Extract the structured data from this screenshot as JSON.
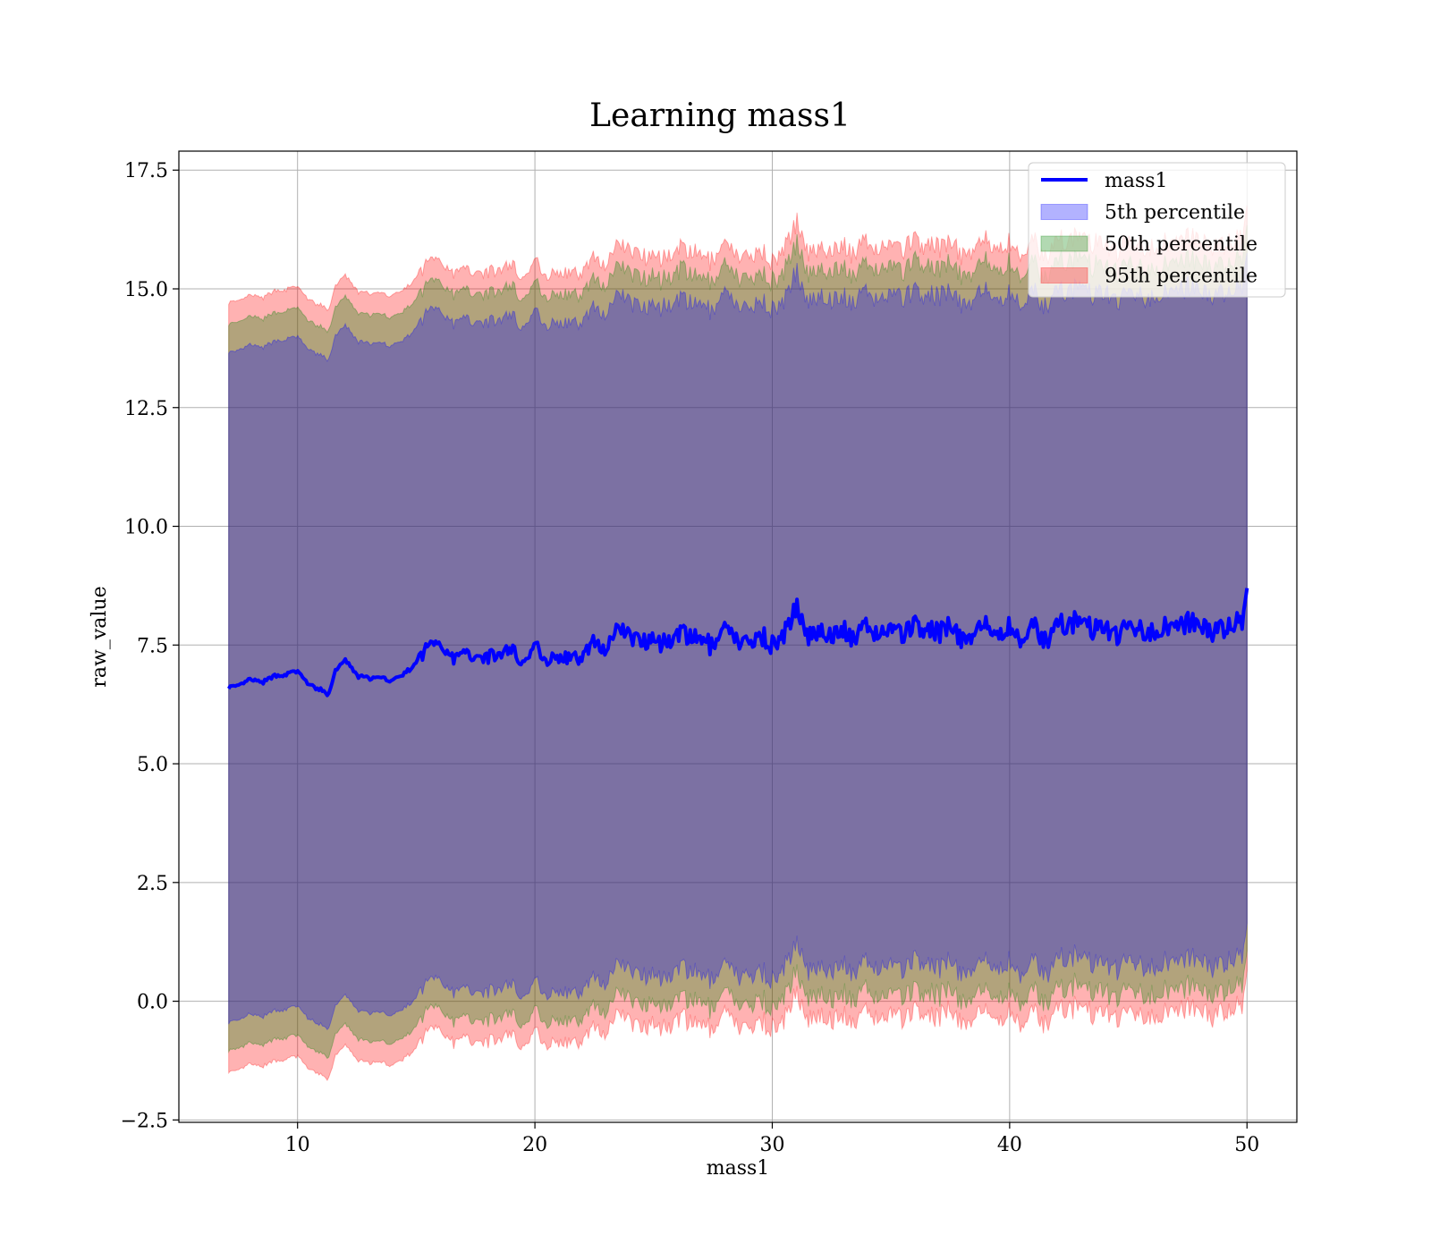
{
  "chart_data": {
    "type": "area",
    "title": "Learning mass1",
    "xlabel": "mass1",
    "ylabel": "raw_value",
    "xlim": [
      5,
      52.1
    ],
    "ylim": [
      -2.55,
      17.9
    ],
    "xticks": [
      10,
      20,
      30,
      40,
      50
    ],
    "xtick_labels": [
      "10",
      "20",
      "30",
      "40",
      "50"
    ],
    "yticks": [
      -2.5,
      0.0,
      2.5,
      5.0,
      7.5,
      10.0,
      12.5,
      15.0,
      17.5
    ],
    "ytick_labels": [
      "−2.5",
      "0.0",
      "2.5",
      "5.0",
      "7.5",
      "10.0",
      "12.5",
      "15.0",
      "17.5"
    ],
    "grid": true,
    "legend_position": "upper right",
    "series": [
      {
        "name": "mass1",
        "kind": "line",
        "color": "#0000ff"
      },
      {
        "name": "5th percentile",
        "kind": "band",
        "color": "#0000ff",
        "half_width": 7.05
      },
      {
        "name": "50th percentile",
        "kind": "band",
        "color": "#008000",
        "half_width": 7.65
      },
      {
        "name": "95th percentile",
        "kind": "band",
        "color": "#ff0000",
        "half_width": 8.1
      }
    ],
    "x": [
      7.1,
      7.5,
      8.0,
      8.5,
      9.0,
      9.5,
      10.0,
      10.5,
      11.0,
      11.3,
      11.6,
      12.0,
      12.5,
      13.0,
      13.5,
      14.0,
      14.5,
      15.0,
      15.5,
      16.0,
      16.5,
      17.0,
      17.5,
      18.0,
      18.5,
      19.0,
      19.5,
      20.0,
      20.5,
      21.0,
      21.5,
      22.0,
      22.5,
      23.0,
      23.5,
      24.0,
      24.5,
      25.0,
      25.5,
      26.0,
      26.5,
      27.0,
      27.5,
      28.0,
      28.5,
      29.0,
      29.5,
      30.0,
      30.5,
      31.0,
      31.5,
      32.0,
      32.5,
      33.0,
      33.5,
      34.0,
      34.5,
      35.0,
      35.5,
      36.0,
      36.5,
      37.0,
      37.5,
      38.0,
      38.5,
      39.0,
      39.5,
      40.0,
      40.5,
      41.0,
      41.5,
      42.0,
      42.5,
      43.0,
      43.5,
      44.0,
      44.5,
      45.0,
      45.5,
      46.0,
      46.5,
      47.0,
      47.5,
      48.0,
      48.5,
      49.0,
      49.5,
      49.8,
      50.0
    ],
    "median": [
      6.62,
      6.62,
      6.78,
      6.7,
      6.85,
      6.88,
      6.95,
      6.65,
      6.55,
      6.45,
      6.95,
      7.2,
      6.85,
      6.8,
      6.8,
      6.75,
      6.9,
      7.1,
      7.5,
      7.6,
      7.2,
      7.3,
      7.3,
      7.25,
      7.3,
      7.45,
      7.1,
      7.5,
      7.2,
      7.25,
      7.2,
      7.25,
      7.6,
      7.4,
      7.9,
      7.7,
      7.6,
      7.7,
      7.5,
      7.8,
      7.6,
      7.7,
      7.4,
      7.8,
      7.6,
      7.5,
      7.75,
      7.5,
      7.7,
      8.3,
      7.7,
      7.85,
      7.7,
      7.8,
      7.6,
      7.9,
      7.7,
      7.9,
      7.7,
      7.95,
      7.8,
      7.75,
      7.9,
      7.6,
      7.8,
      7.9,
      7.7,
      7.9,
      7.6,
      7.9,
      7.55,
      8.0,
      7.9,
      8.1,
      7.8,
      7.9,
      7.7,
      7.9,
      7.8,
      7.8,
      7.9,
      7.8,
      8.0,
      7.9,
      7.8,
      7.8,
      7.95,
      8.0,
      8.7
    ]
  }
}
